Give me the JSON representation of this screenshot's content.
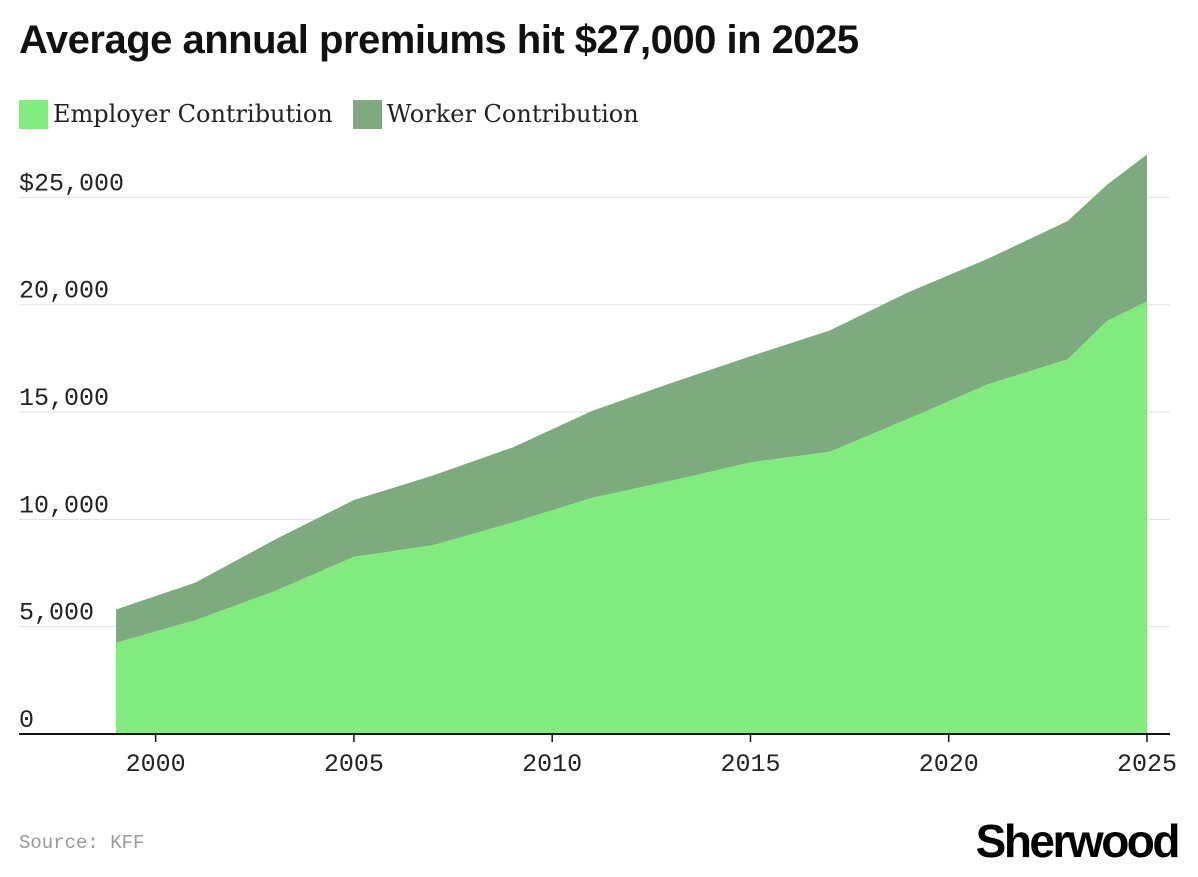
{
  "chart_data": {
    "type": "area",
    "stacked": true,
    "title": "Average annual premiums hit $27,000 in 2025",
    "x": [
      1999,
      2001,
      2003,
      2005,
      2007,
      2009,
      2011,
      2013,
      2015,
      2017,
      2019,
      2021,
      2023,
      2024,
      2025
    ],
    "series": [
      {
        "name": "Employer Contribution",
        "color": "#82eb7d",
        "values": [
          4250,
          5300,
          6650,
          8250,
          8800,
          9850,
          11000,
          11800,
          12650,
          13150,
          14700,
          16300,
          17450,
          19250,
          20150
        ]
      },
      {
        "name": "Worker Contribution",
        "color": "#7dab7f",
        "values": [
          1550,
          1750,
          2400,
          2650,
          3250,
          3500,
          4050,
          4550,
          4950,
          5650,
          5900,
          5850,
          6450,
          6350,
          6850
        ]
      }
    ],
    "y_ticks": [
      "0",
      "5,000",
      "10,000",
      "15,000",
      "20,000",
      "$25,000"
    ],
    "y_tick_values": [
      0,
      5000,
      10000,
      15000,
      20000,
      25000
    ],
    "x_ticks": [
      "2000",
      "2005",
      "2010",
      "2015",
      "2020",
      "2025"
    ],
    "x_tick_values": [
      2000,
      2005,
      2010,
      2015,
      2020,
      2025
    ],
    "ylim": [
      0,
      27000
    ],
    "xlim": [
      1999,
      2025
    ],
    "grid": true,
    "legend_position": "top-left"
  },
  "footer": {
    "source": "Source: KFF",
    "brand": "Sherwood"
  },
  "colors": {
    "employer": "#82eb7d",
    "worker": "#7dab7f",
    "grid": "#e0e0e0",
    "axis": "#111111"
  }
}
